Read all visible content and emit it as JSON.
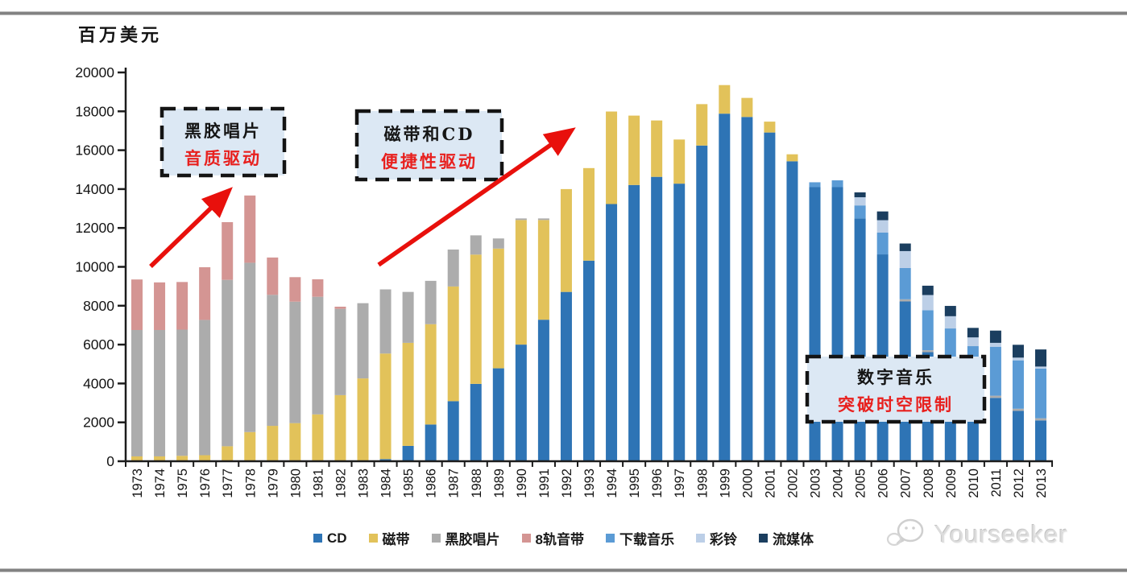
{
  "page": {
    "unit_label": "百万美元",
    "watermark": "Yourseeker"
  },
  "chart_data": {
    "type": "bar",
    "stacked": true,
    "title": "",
    "ylabel": "百万美元",
    "xlabel": "",
    "ylim": [
      0,
      20000
    ],
    "ytick_step": 2000,
    "grid": false,
    "legend_position": "bottom",
    "categories": [
      1973,
      1974,
      1975,
      1976,
      1977,
      1978,
      1979,
      1980,
      1981,
      1982,
      1983,
      1984,
      1985,
      1986,
      1987,
      1988,
      1989,
      1990,
      1991,
      1992,
      1993,
      1994,
      1995,
      1996,
      1997,
      1998,
      1999,
      2000,
      2001,
      2002,
      2003,
      2004,
      2005,
      2006,
      2007,
      2008,
      2009,
      2010,
      2011,
      2012,
      2013
    ],
    "series": [
      {
        "key": "cd",
        "name": "CD",
        "color": "#2E74B5",
        "values": [
          0,
          0,
          0,
          0,
          0,
          0,
          0,
          0,
          0,
          0,
          0,
          110,
          790,
          1890,
          3090,
          3980,
          4780,
          6000,
          7280,
          8710,
          10320,
          13230,
          14210,
          14630,
          14280,
          16240,
          17880,
          17710,
          16910,
          15430,
          14100,
          14100,
          12490,
          10640,
          8220,
          5610,
          3990,
          3100,
          3260,
          2590,
          2100
        ]
      },
      {
        "key": "cassette",
        "name": "磁带",
        "color": "#E2C25A",
        "values": [
          250,
          250,
          280,
          310,
          770,
          1500,
          1820,
          1960,
          2410,
          3400,
          4260,
          5430,
          5300,
          5160,
          5900,
          6650,
          6160,
          6410,
          5130,
          5290,
          4760,
          4760,
          3570,
          2900,
          2270,
          2130,
          1470,
          980,
          560,
          360,
          0,
          0,
          0,
          0,
          0,
          0,
          0,
          0,
          0,
          0,
          0
        ]
      },
      {
        "key": "vinyl",
        "name": "黑胶唱片",
        "color": "#ACACAC",
        "values": [
          6500,
          6500,
          6490,
          6960,
          8560,
          8710,
          6740,
          6250,
          6050,
          4440,
          3870,
          3300,
          2620,
          2230,
          1900,
          990,
          520,
          80,
          80,
          0,
          0,
          0,
          0,
          0,
          0,
          0,
          0,
          0,
          0,
          0,
          0,
          0,
          0,
          0,
          110,
          100,
          110,
          90,
          110,
          110,
          110
        ]
      },
      {
        "key": "8track",
        "name": "8轨音带",
        "color": "#D49593",
        "values": [
          2600,
          2450,
          2450,
          2710,
          2970,
          3460,
          1920,
          1260,
          900,
          110,
          0,
          0,
          0,
          0,
          0,
          0,
          0,
          0,
          0,
          0,
          0,
          0,
          0,
          0,
          0,
          0,
          0,
          0,
          0,
          0,
          0,
          0,
          0,
          0,
          0,
          0,
          0,
          0,
          0,
          0,
          0
        ]
      },
      {
        "key": "download",
        "name": "下载音乐",
        "color": "#5B9BD5",
        "values": [
          0,
          0,
          0,
          0,
          0,
          0,
          0,
          0,
          0,
          0,
          0,
          0,
          0,
          0,
          0,
          0,
          0,
          0,
          0,
          0,
          0,
          0,
          0,
          0,
          0,
          0,
          0,
          0,
          0,
          0,
          250,
          350,
          670,
          1120,
          1610,
          2060,
          2730,
          2730,
          2520,
          2490,
          2560
        ]
      },
      {
        "key": "ringtone",
        "name": "彩铃",
        "color": "#BCCFE7",
        "values": [
          0,
          0,
          0,
          0,
          0,
          0,
          0,
          0,
          0,
          0,
          0,
          0,
          0,
          0,
          0,
          0,
          0,
          0,
          0,
          0,
          0,
          0,
          0,
          0,
          0,
          0,
          0,
          0,
          0,
          0,
          0,
          0,
          420,
          640,
          870,
          780,
          630,
          450,
          200,
          140,
          100
        ]
      },
      {
        "key": "streaming",
        "name": "流媒体",
        "color": "#1B3E5F",
        "values": [
          0,
          0,
          0,
          0,
          0,
          0,
          0,
          0,
          0,
          0,
          0,
          0,
          0,
          0,
          0,
          0,
          0,
          0,
          0,
          0,
          0,
          0,
          0,
          0,
          0,
          0,
          0,
          0,
          0,
          0,
          0,
          0,
          250,
          450,
          390,
          480,
          530,
          490,
          630,
          660,
          880
        ]
      }
    ]
  },
  "annotations": [
    {
      "line1": "黑胶唱片",
      "line2": "音质驱动",
      "text_color": "#1a1a1a",
      "accent_color": "#E8201E",
      "fill": "#DCE8F4"
    },
    {
      "line1": "磁带和CD",
      "line2": "便捷性驱动",
      "text_color": "#1a1a1a",
      "accent_color": "#E8201E",
      "fill": "#DCE8F4"
    },
    {
      "line1": "数字音乐",
      "line2": "突破时空限制",
      "text_color": "#1a1a1a",
      "accent_color": "#E8201E",
      "fill": "#DCE8F4"
    }
  ],
  "colors": {
    "arrow_red": "#E8100C",
    "axis": "#1c1c1c",
    "rule_gray": "#828282",
    "watermark_gray": "#d9d9d9"
  }
}
